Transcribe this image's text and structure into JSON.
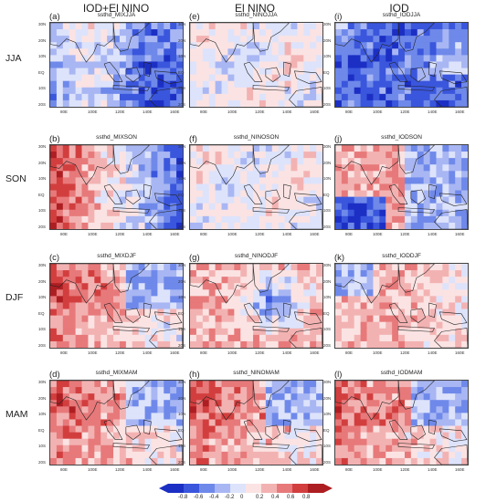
{
  "columns": [
    "IOD+El NINO",
    "El NINO",
    "IOD"
  ],
  "rows": [
    "JJA",
    "SON",
    "DJF",
    "MAM"
  ],
  "panels": [
    [
      {
        "letter": "(a)",
        "title": "ssthd_MIXJJA"
      },
      {
        "letter": "(e)",
        "title": "ssthd_NINOJJA"
      },
      {
        "letter": "(i)",
        "title": "ssthd_IODJJA"
      }
    ],
    [
      {
        "letter": "(b)",
        "title": "ssthd_MIXSON"
      },
      {
        "letter": "(f)",
        "title": "ssthd_NINOSON"
      },
      {
        "letter": "(j)",
        "title": "ssthd_IODSON"
      }
    ],
    [
      {
        "letter": "(c)",
        "title": "ssthd_MIXDJF"
      },
      {
        "letter": "(g)",
        "title": "ssthd_NINODJF"
      },
      {
        "letter": "(k)",
        "title": "ssthd_IODDJF"
      }
    ],
    [
      {
        "letter": "(d)",
        "title": "ssthd_MIXMAM"
      },
      {
        "letter": "(h)",
        "title": "ssthd_NINOMAM"
      },
      {
        "letter": "(l)",
        "title": "ssthd_IODMAM"
      }
    ]
  ],
  "lat_ticks": [
    "30N",
    "20N",
    "10N",
    "EQ",
    "10S",
    "20S"
  ],
  "lon_ticks": [
    "80E",
    "100E",
    "120E",
    "140E",
    "160E"
  ],
  "colorbar": {
    "ticks": [
      "-0.8",
      "-0.6",
      "-0.4",
      "-0.2",
      "0",
      "0.2",
      "0.4",
      "0.6",
      "0.8"
    ],
    "colors": [
      "#1c2fc4",
      "#3a56dc",
      "#6f89ea",
      "#a8b6f3",
      "#dde3fb",
      "#fbe3e3",
      "#f3b2b2",
      "#e7797a",
      "#d23e3e",
      "#ad1e22"
    ]
  },
  "tone": [
    [
      "mixed-blue",
      "light-mixed",
      "blue"
    ],
    [
      "red-west-blue-east",
      "light-mixed",
      "blue-east-red-west"
    ],
    [
      "red",
      "red-blue-center",
      "light-red"
    ],
    [
      "red",
      "red",
      "red"
    ]
  ]
}
